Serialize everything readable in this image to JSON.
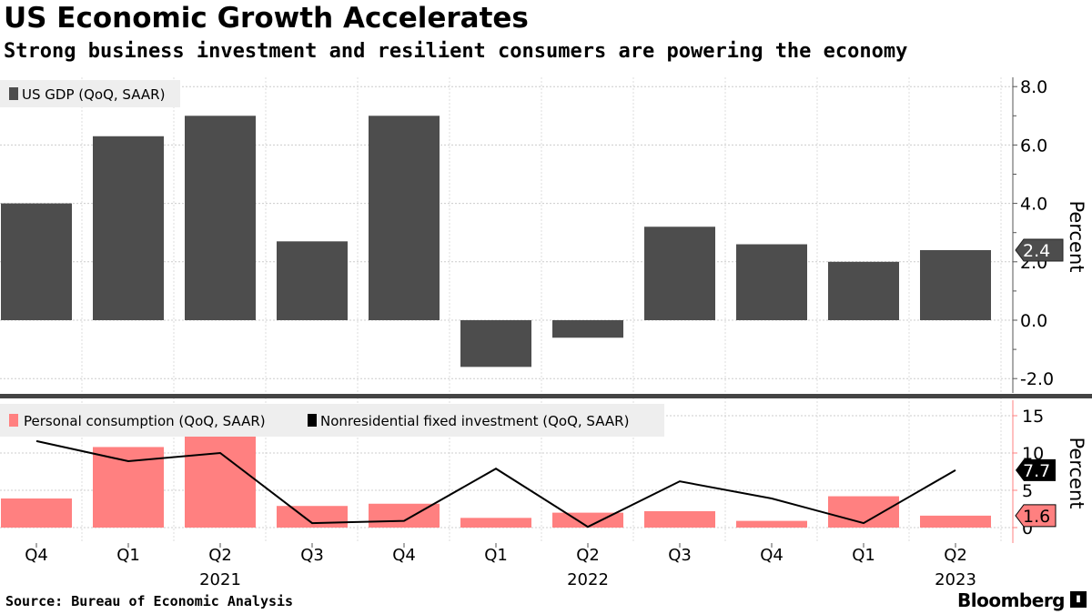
{
  "title": "US Economic Growth Accelerates",
  "subtitle": "Strong business investment and resilient consumers are powering the economy",
  "source": "Source: Bureau of Economic Analysis",
  "brand": "Bloomberg",
  "chart_data": [
    {
      "type": "bar",
      "title": "US GDP",
      "legend": [
        "US GDP (QoQ, SAAR)"
      ],
      "ylabel": "Percent",
      "ylim": [
        -2,
        8
      ],
      "yticks": [
        "8.0",
        "6.0",
        "4.0",
        "2.0",
        "0.0",
        "-2.0"
      ],
      "categories": [
        "Q4",
        "Q1",
        "Q2",
        "Q3",
        "Q4",
        "Q1",
        "Q2",
        "Q3",
        "Q4",
        "Q1",
        "Q2"
      ],
      "years": [
        "2021",
        "2022",
        "2023"
      ],
      "series": [
        {
          "name": "US GDP (QoQ, SAAR)",
          "color": "#4d4d4d",
          "values": [
            4.0,
            6.3,
            7.0,
            2.7,
            7.0,
            -1.6,
            -0.6,
            3.2,
            2.6,
            2.0,
            2.4
          ]
        }
      ],
      "last_label": "2.4"
    },
    {
      "type": "bar+line",
      "ylabel": "Percent",
      "ylim": [
        0,
        15
      ],
      "yticks": [
        "15",
        "10",
        "5",
        "0"
      ],
      "categories": [
        "Q4",
        "Q1",
        "Q2",
        "Q3",
        "Q4",
        "Q1",
        "Q2",
        "Q3",
        "Q4",
        "Q1",
        "Q2"
      ],
      "series": [
        {
          "name": "Personal consumption (QoQ, SAAR)",
          "type": "bar",
          "color": "#ff8080",
          "values": [
            3.9,
            10.8,
            12.2,
            2.9,
            3.2,
            1.3,
            2.0,
            2.2,
            0.9,
            4.2,
            1.6
          ],
          "last_label": "1.6"
        },
        {
          "name": "Nonresidential fixed investment (QoQ, SAAR)",
          "type": "line",
          "color": "#000000",
          "values": [
            11.6,
            8.9,
            10.0,
            0.6,
            0.9,
            7.9,
            0.1,
            6.2,
            3.9,
            0.6,
            7.7
          ],
          "last_label": "7.7"
        }
      ]
    }
  ]
}
